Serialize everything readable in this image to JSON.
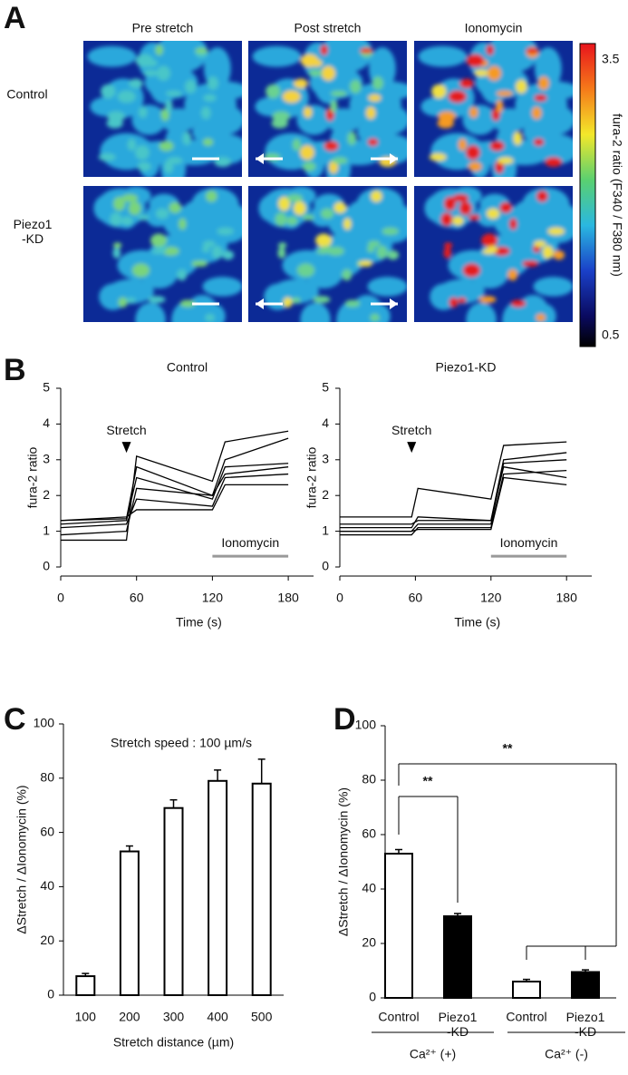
{
  "panel_letters": [
    "A",
    "B",
    "C",
    "D"
  ],
  "image_panel": {
    "columns": [
      "Pre stretch",
      "Post stretch",
      "Ionomycin"
    ],
    "rows": [
      "Control",
      "Piezo1\n-KD"
    ],
    "colorbar": {
      "max": 3.5,
      "min": 0.5,
      "label": "fura-2 ratio (F340 / F380 nm)"
    }
  },
  "chart_data": [
    {
      "type": "line",
      "title": "Control",
      "xlabel": "Time (s)",
      "ylabel": "fura-2 ratio",
      "xlim": [
        0,
        200
      ],
      "xticks": [
        0,
        60,
        120,
        180
      ],
      "ylim": [
        0,
        5
      ],
      "yticks": [
        0,
        1,
        2,
        3,
        4,
        5
      ],
      "stretch_label": "Stretch",
      "stretch_time": 52,
      "ionomycin_label": "Ionomycin",
      "ionomycin_period": [
        120,
        180
      ],
      "x": [
        0,
        52,
        60,
        120,
        130,
        180
      ],
      "series": [
        {
          "color": "#000000",
          "values": [
            0.75,
            0.75,
            3.1,
            2.4,
            3.5,
            3.8
          ]
        },
        {
          "color": "#000000",
          "values": [
            1.3,
            1.35,
            2.8,
            2.0,
            3.0,
            3.6
          ]
        },
        {
          "color": "#000000",
          "values": [
            1.2,
            1.3,
            2.5,
            1.9,
            2.8,
            2.9
          ]
        },
        {
          "color": "#000000",
          "values": [
            0.9,
            1.0,
            2.2,
            2.0,
            2.6,
            2.8
          ]
        },
        {
          "color": "#000000",
          "values": [
            1.1,
            1.2,
            1.9,
            1.7,
            2.5,
            2.6
          ]
        },
        {
          "color": "#000000",
          "values": [
            1.3,
            1.4,
            1.6,
            1.6,
            2.3,
            2.3
          ]
        }
      ]
    },
    {
      "type": "line",
      "title": "Piezo1-KD",
      "xlabel": "Time (s)",
      "ylabel": "fura-2 ratio",
      "xlim": [
        0,
        200
      ],
      "xticks": [
        0,
        60,
        120,
        180
      ],
      "ylim": [
        0,
        5
      ],
      "yticks": [
        0,
        1,
        2,
        3,
        4,
        5
      ],
      "stretch_label": "Stretch",
      "stretch_time": 57,
      "ionomycin_label": "Ionomycin",
      "ionomycin_period": [
        120,
        180
      ],
      "x": [
        0,
        57,
        62,
        120,
        130,
        180
      ],
      "series": [
        {
          "color": "#000000",
          "values": [
            1.4,
            1.4,
            2.2,
            1.9,
            3.4,
            3.5
          ]
        },
        {
          "color": "#000000",
          "values": [
            1.1,
            1.1,
            1.4,
            1.3,
            3.0,
            3.2
          ]
        },
        {
          "color": "#000000",
          "values": [
            1.0,
            1.0,
            1.2,
            1.2,
            2.9,
            3.0
          ]
        },
        {
          "color": "#000000",
          "values": [
            0.9,
            0.9,
            1.1,
            1.1,
            2.6,
            2.7
          ]
        },
        {
          "color": "#000000",
          "values": [
            1.2,
            1.2,
            1.3,
            1.3,
            2.8,
            2.5
          ]
        },
        {
          "color": "#000000",
          "values": [
            1.0,
            1.0,
            1.05,
            1.05,
            2.5,
            2.3
          ]
        }
      ]
    },
    {
      "type": "bar",
      "annotation": "Stretch  speed : 100 µm/s",
      "xlabel": "Stretch distance (µm)",
      "ylabel": "ΔStretch / ΔIonomycin (%)",
      "categories": [
        "100",
        "200",
        "300",
        "400",
        "500"
      ],
      "values": [
        7,
        53,
        69,
        79,
        78
      ],
      "errors": [
        1,
        2,
        3,
        4,
        9
      ],
      "colors": [
        "#ffffff",
        "#ffffff",
        "#ffffff",
        "#ffffff",
        "#ffffff"
      ],
      "ylim": [
        0,
        100
      ],
      "yticks": [
        0,
        20,
        40,
        60,
        80,
        100
      ]
    },
    {
      "type": "bar",
      "ylabel": "ΔStretch / ΔIonomycin (%)",
      "categories": [
        "Control",
        "Piezo1\n-KD",
        "Control",
        "Piezo1\n-KD"
      ],
      "values": [
        53,
        30,
        6,
        9.5
      ],
      "errors": [
        1.5,
        1,
        0.8,
        0.8
      ],
      "colors": [
        "#ffffff",
        "#000000",
        "#ffffff",
        "#000000"
      ],
      "groups": [
        "Ca²⁺ (+)",
        "Ca²⁺ (-)"
      ],
      "significance": [
        "**",
        "**"
      ],
      "ylim": [
        0,
        100
      ],
      "yticks": [
        0,
        20,
        40,
        60,
        80,
        100
      ]
    }
  ]
}
